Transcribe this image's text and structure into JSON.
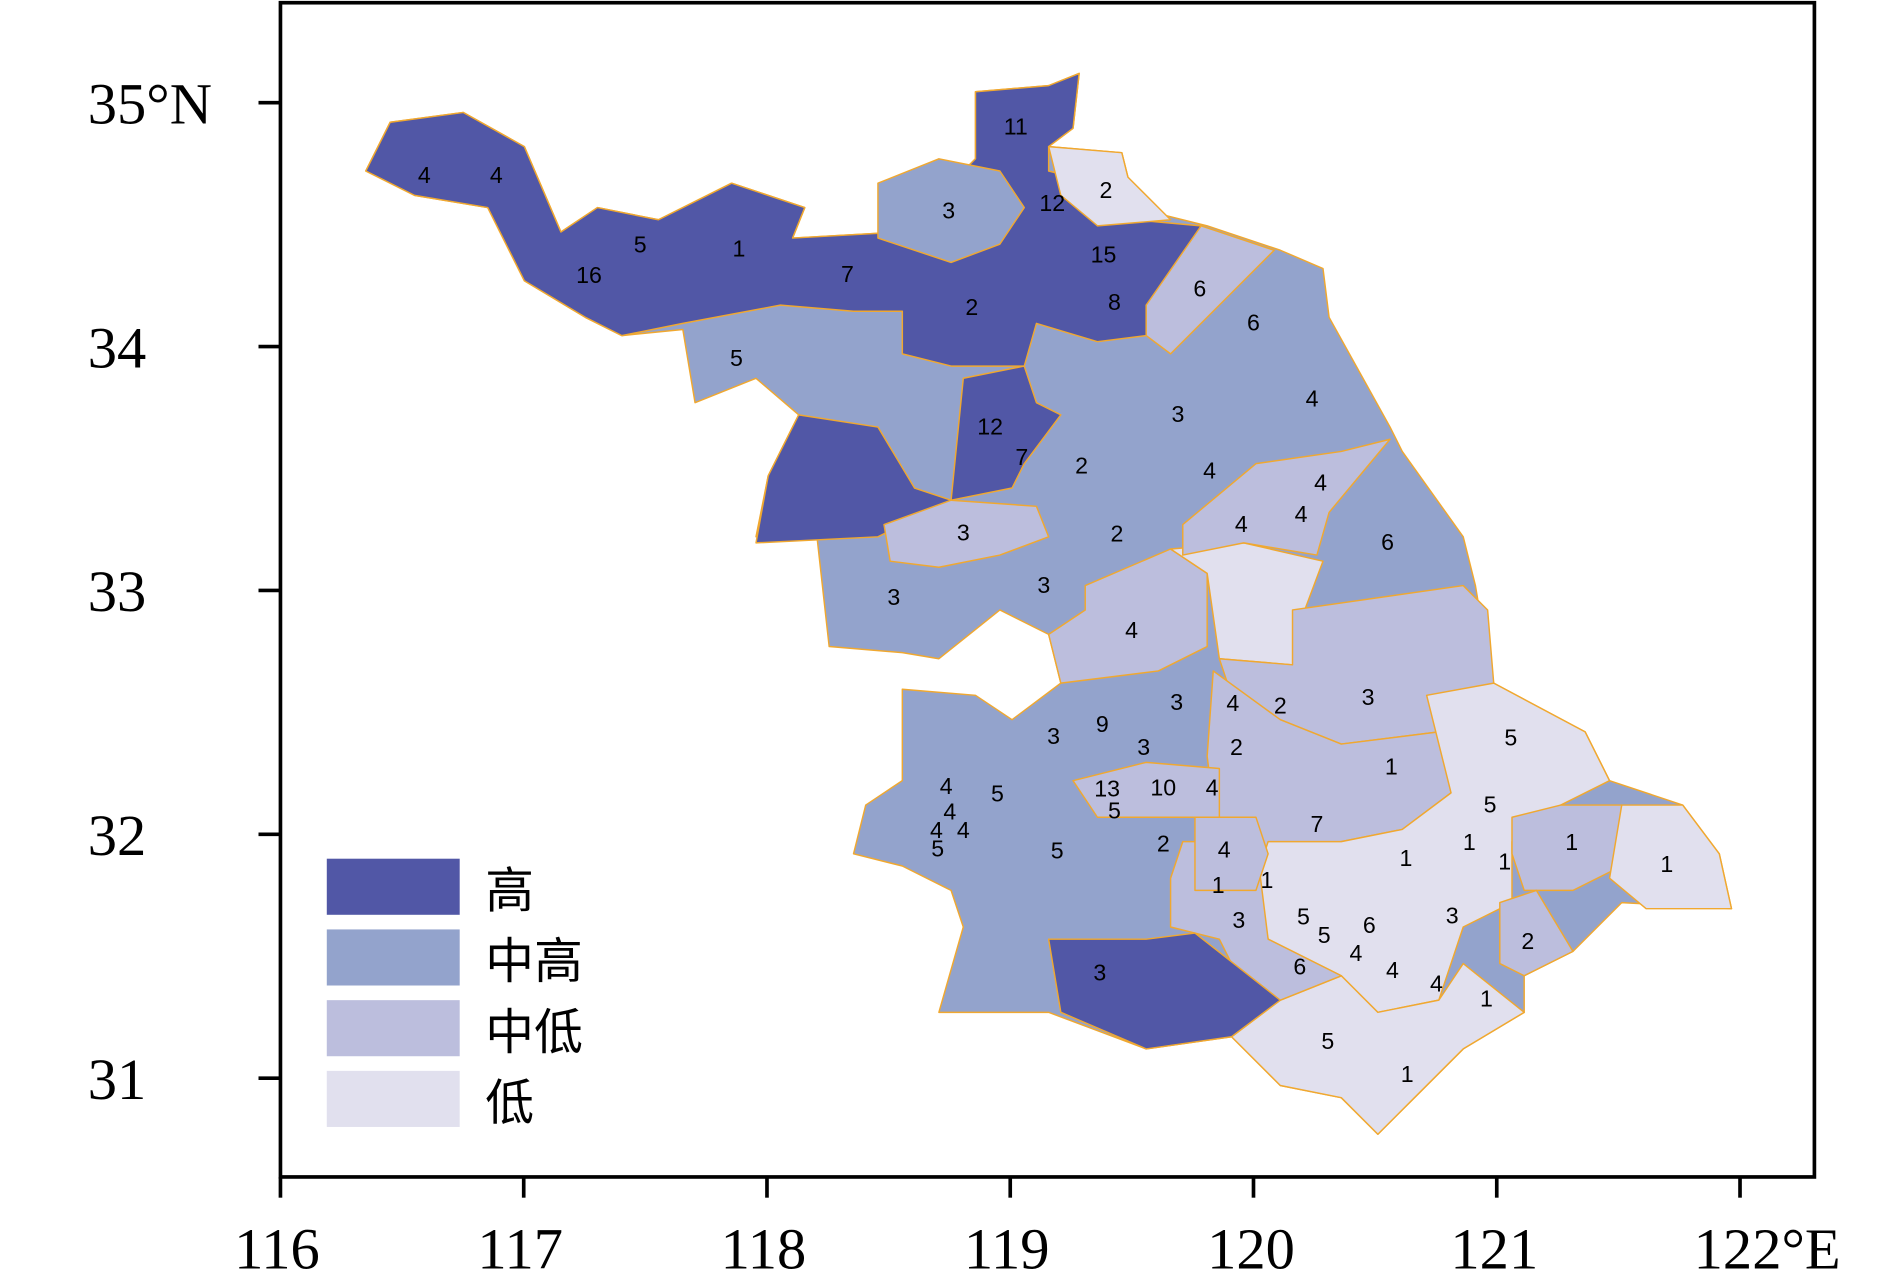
{
  "colors": {
    "high": "#5157a6",
    "mid_high": "#93a3cc",
    "mid_low": "#bcbedd",
    "low": "#e1e0ee",
    "border": "#f0a830"
  },
  "axes": {
    "x_ticks": [
      "116",
      "117",
      "118",
      "119",
      "120",
      "121",
      "122°E"
    ],
    "y_ticks": [
      "35°N",
      "34",
      "33",
      "32",
      "31"
    ]
  },
  "legend": [
    {
      "label": "高",
      "level": "high"
    },
    {
      "label": "中高",
      "level": "mid_high"
    },
    {
      "label": "中低",
      "level": "mid_low"
    },
    {
      "label": "低",
      "level": "low"
    }
  ],
  "region_labels": [
    {
      "value": "4",
      "level": "high"
    },
    {
      "value": "4",
      "level": "high"
    },
    {
      "value": "5",
      "level": "high"
    },
    {
      "value": "1",
      "level": "high"
    },
    {
      "value": "16",
      "level": "high"
    },
    {
      "value": "7",
      "level": "high"
    },
    {
      "value": "11",
      "level": "high"
    },
    {
      "value": "12",
      "level": "high"
    },
    {
      "value": "2",
      "level": "low"
    },
    {
      "value": "3",
      "level": "mid_high"
    },
    {
      "value": "15",
      "level": "high"
    },
    {
      "value": "8",
      "level": "high"
    },
    {
      "value": "6",
      "level": "mid_low"
    },
    {
      "value": "2",
      "level": "high"
    },
    {
      "value": "6",
      "level": "mid_high"
    },
    {
      "value": "5",
      "level": "mid_high"
    },
    {
      "value": "4",
      "level": "mid_high"
    },
    {
      "value": "3",
      "level": "mid_high"
    },
    {
      "value": "12",
      "level": "high"
    },
    {
      "value": "7",
      "level": "high"
    },
    {
      "value": "2",
      "level": "mid_high"
    },
    {
      "value": "4",
      "level": "mid_high"
    },
    {
      "value": "4",
      "level": "mid_low"
    },
    {
      "value": "4",
      "level": "mid_low"
    },
    {
      "value": "4",
      "level": "mid_low"
    },
    {
      "value": "3",
      "level": "mid_low"
    },
    {
      "value": "2",
      "level": "mid_high"
    },
    {
      "value": "6",
      "level": "mid_high"
    },
    {
      "value": "3",
      "level": "mid_high"
    },
    {
      "value": "3",
      "level": "mid_high"
    },
    {
      "value": "4",
      "level": "mid_low"
    },
    {
      "value": "3",
      "level": "mid_high"
    },
    {
      "value": "4",
      "level": "mid_high"
    },
    {
      "value": "2",
      "level": "mid_low"
    },
    {
      "value": "3",
      "level": "mid_low"
    },
    {
      "value": "5",
      "level": "low"
    },
    {
      "value": "9",
      "level": "mid_high"
    },
    {
      "value": "3",
      "level": "mid_high"
    },
    {
      "value": "3",
      "level": "mid_high"
    },
    {
      "value": "2",
      "level": "mid_low"
    },
    {
      "value": "1",
      "level": "mid_low"
    },
    {
      "value": "4",
      "level": "mid_high"
    },
    {
      "value": "5",
      "level": "mid_high"
    },
    {
      "value": "13",
      "level": "mid_low"
    },
    {
      "value": "10",
      "level": "mid_low"
    },
    {
      "value": "4",
      "level": "mid_low"
    },
    {
      "value": "5",
      "level": "low"
    },
    {
      "value": "4",
      "level": "mid_high"
    },
    {
      "value": "5",
      "level": "mid_low"
    },
    {
      "value": "7",
      "level": "mid_low"
    },
    {
      "value": "4",
      "level": "mid_high"
    },
    {
      "value": "4",
      "level": "mid_high"
    },
    {
      "value": "1",
      "level": "low"
    },
    {
      "value": "1",
      "level": "mid_low"
    },
    {
      "value": "5",
      "level": "mid_high"
    },
    {
      "value": "2",
      "level": "mid_high"
    },
    {
      "value": "5",
      "level": "mid_high"
    },
    {
      "value": "4",
      "level": "mid_low"
    },
    {
      "value": "1",
      "level": "low"
    },
    {
      "value": "1",
      "level": "low"
    },
    {
      "value": "1",
      "level": "low"
    },
    {
      "value": "1",
      "level": "mid_low"
    },
    {
      "value": "1",
      "level": "low"
    },
    {
      "value": "3",
      "level": "mid_low"
    },
    {
      "value": "5",
      "level": "mid_low"
    },
    {
      "value": "3",
      "level": "low"
    },
    {
      "value": "6",
      "level": "mid_low"
    },
    {
      "value": "5",
      "level": "mid_low"
    },
    {
      "value": "2",
      "level": "mid_low"
    },
    {
      "value": "4",
      "level": "mid_low"
    },
    {
      "value": "6",
      "level": "mid_low"
    },
    {
      "value": "4",
      "level": "low"
    },
    {
      "value": "3",
      "level": "high"
    },
    {
      "value": "4",
      "level": "low"
    },
    {
      "value": "1",
      "level": "low"
    },
    {
      "value": "5",
      "level": "low"
    },
    {
      "value": "1",
      "level": "low"
    }
  ]
}
